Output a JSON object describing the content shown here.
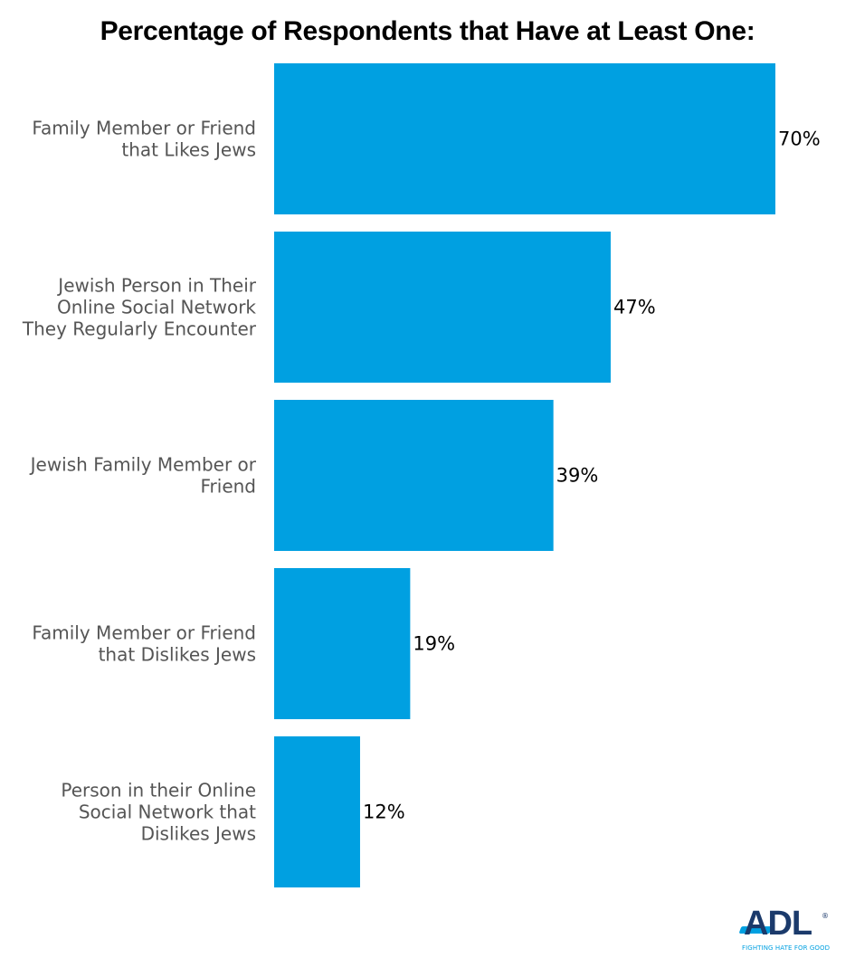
{
  "chart_data": {
    "type": "bar",
    "orientation": "horizontal",
    "title": "Percentage of Respondents that Have at Least One:",
    "xlabel": "",
    "ylabel": "",
    "xlim": [
      0,
      70
    ],
    "grid": false,
    "bar_color": "#00a0e1",
    "categories": [
      [
        "Family Member or Friend",
        "that Likes Jews"
      ],
      [
        "Jewish Person in Their",
        "Online Social Network",
        "They Regularly Encounter"
      ],
      [
        "Jewish Family Member or",
        "Friend"
      ],
      [
        "Family Member or Friend",
        "that Dislikes Jews"
      ],
      [
        "Person in their Online",
        "Social Network that",
        "Dislikes Jews"
      ]
    ],
    "values": [
      70,
      47,
      39,
      19,
      12
    ],
    "value_labels": [
      "70%",
      "47%",
      "39%",
      "19%",
      "12%"
    ]
  },
  "logo": {
    "name": "ADL",
    "tagline": "FIGHTING HATE FOR GOOD",
    "registered": "®",
    "colors": {
      "primary": "#1b3a6b",
      "accent": "#00a0e1"
    }
  }
}
